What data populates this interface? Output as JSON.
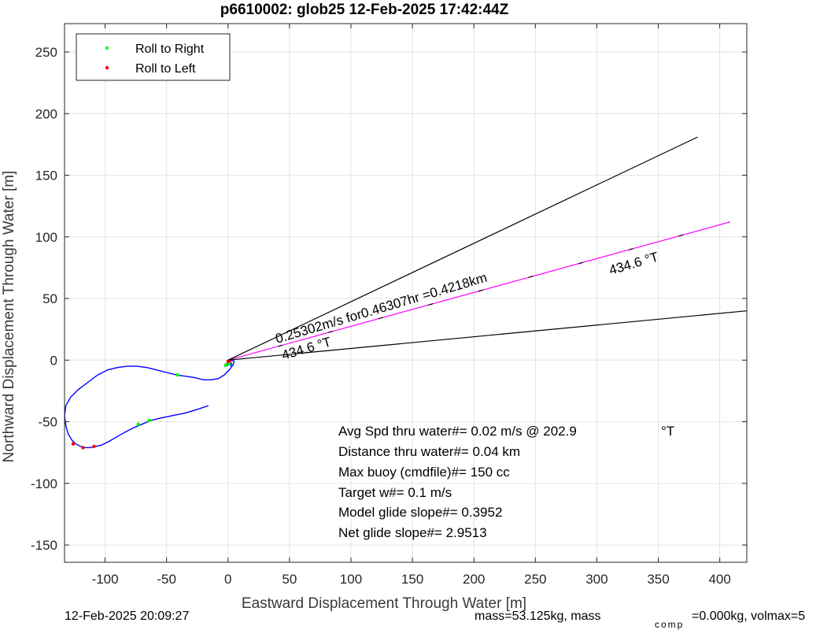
{
  "chart_data": {
    "type": "line",
    "title": "p6610002: glob25 12-Feb-2025 17:42:44Z",
    "xlabel": "Eastward Displacement Through Water [m]",
    "ylabel": "Northward Displacement Through Water [m]",
    "xlim": [
      -133,
      422
    ],
    "ylim": [
      -164,
      273
    ],
    "xticks": [
      -100,
      -50,
      0,
      50,
      100,
      150,
      200,
      250,
      300,
      350,
      400
    ],
    "yticks": [
      -150,
      -100,
      -50,
      0,
      50,
      100,
      150,
      200,
      250
    ],
    "grid": true,
    "legend_position": "top-left",
    "legend": [
      {
        "label": "Roll to Right",
        "color": "#00ff00"
      },
      {
        "label": "Roll to Left",
        "color": "#ff0000"
      }
    ],
    "track": {
      "color": "#0000ff",
      "points": [
        [
          -16,
          -37
        ],
        [
          -25,
          -40
        ],
        [
          -35,
          -43
        ],
        [
          -45,
          -45
        ],
        [
          -55,
          -47
        ],
        [
          -63,
          -49
        ],
        [
          -70,
          -52
        ],
        [
          -77,
          -55
        ],
        [
          -83,
          -58
        ],
        [
          -90,
          -62
        ],
        [
          -97,
          -66
        ],
        [
          -103,
          -69
        ],
        [
          -108,
          -70
        ],
        [
          -112,
          -71
        ],
        [
          -116,
          -71
        ],
        [
          -120,
          -70
        ],
        [
          -124,
          -68
        ],
        [
          -127,
          -65
        ],
        [
          -130,
          -60
        ],
        [
          -132,
          -53
        ],
        [
          -133,
          -45
        ],
        [
          -132,
          -37
        ],
        [
          -128,
          -30
        ],
        [
          -122,
          -24
        ],
        [
          -114,
          -18
        ],
        [
          -106,
          -12
        ],
        [
          -98,
          -8
        ],
        [
          -90,
          -6
        ],
        [
          -82,
          -5
        ],
        [
          -74,
          -5
        ],
        [
          -66,
          -6
        ],
        [
          -58,
          -8
        ],
        [
          -50,
          -10
        ],
        [
          -42,
          -12
        ],
        [
          -35,
          -13
        ],
        [
          -28,
          -14
        ],
        [
          -20,
          -16
        ],
        [
          -14,
          -16
        ],
        [
          -8,
          -15
        ],
        [
          -3,
          -12
        ],
        [
          1,
          -8
        ],
        [
          4,
          -4
        ],
        [
          5,
          -1
        ],
        [
          3,
          0
        ],
        [
          1,
          -1
        ],
        [
          -1,
          -3
        ],
        [
          -2,
          -5
        ],
        [
          0,
          -4
        ],
        [
          2,
          -2
        ],
        [
          3,
          -3
        ],
        [
          2,
          -5
        ]
      ]
    },
    "roll_right_points": [
      [
        -41,
        -12
      ],
      [
        -64,
        -49
      ],
      [
        -73,
        -52
      ],
      [
        -2,
        -4
      ],
      [
        1,
        -3
      ]
    ],
    "roll_left_points": [
      [
        -109,
        -70
      ],
      [
        -118,
        -71
      ],
      [
        -126,
        -68
      ],
      [
        0,
        -1
      ],
      [
        2,
        0
      ]
    ],
    "lines": [
      {
        "color": "#000000",
        "from": [
          0,
          0
        ],
        "to": [
          382,
          181
        ]
      },
      {
        "color": "#000000",
        "from": [
          0,
          0
        ],
        "to": [
          422,
          40
        ]
      },
      {
        "color": "#ff00ff",
        "from": [
          0,
          0
        ],
        "to": [
          408,
          112
        ]
      }
    ],
    "annotations": {
      "speed_label": "0.25302m/s for0.46307hr =0.4218km",
      "heading_label_near": "434.6  °T",
      "heading_label_far": "434.6  °T",
      "stats": [
        "Avg Spd thru water#=  0.02 m/s @ 202.9",
        "Distance thru water#=  0.04 km",
        "Max buoy (cmdfile)#= 150 cc",
        "Target w#= 0.1 m/s",
        "Model glide slope#= 0.3952",
        "Net glide slope#= 2.9513"
      ],
      "stats_unit": "°T"
    }
  },
  "footer": {
    "timestamp": "12-Feb-2025 20:09:27",
    "mass_text": "mass=53.125kg, mass",
    "comp_sub": "comp",
    "volmax_text": "=0.000kg, volmax=5"
  }
}
